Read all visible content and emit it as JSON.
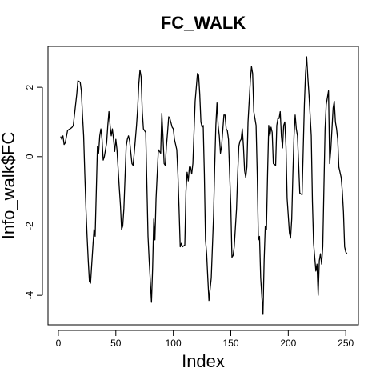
{
  "chart_data": {
    "type": "line",
    "title": "FC_WALK",
    "x_label": "Index",
    "y_label": "Info_walk$FC",
    "color": "#000000",
    "x": [
      2,
      3,
      4,
      5,
      6,
      8,
      9,
      10,
      11,
      12,
      13,
      14,
      15,
      16,
      17,
      19,
      20,
      21,
      22,
      23,
      24,
      25,
      26,
      27,
      28,
      30,
      31,
      32,
      33,
      34,
      35,
      36,
      37,
      38,
      39,
      40,
      42,
      43,
      44,
      45,
      46,
      47,
      48,
      49,
      50,
      51,
      53,
      54,
      55,
      56,
      57,
      58,
      59,
      60,
      61,
      62,
      64,
      65,
      66,
      67,
      68,
      69,
      70,
      71,
      72,
      73,
      74,
      76,
      77,
      78,
      79,
      80,
      81,
      82,
      83,
      84,
      85,
      87,
      88,
      89,
      90,
      91,
      92,
      93,
      94,
      95,
      96,
      97,
      99,
      100,
      101,
      102,
      103,
      104,
      105,
      106,
      107,
      108,
      110,
      111,
      112,
      113,
      114,
      115,
      116,
      117,
      118,
      119,
      121,
      122,
      123,
      124,
      125,
      126,
      127,
      128,
      129,
      130,
      131,
      133,
      134,
      135,
      136,
      137,
      138,
      139,
      140,
      141,
      142,
      144,
      145,
      146,
      147,
      148,
      149,
      150,
      151,
      152,
      153,
      155,
      156,
      157,
      158,
      159,
      160,
      161,
      162,
      163,
      164,
      165,
      167,
      168,
      169,
      170,
      171,
      172,
      173,
      174,
      175,
      176,
      178,
      179,
      180,
      181,
      182,
      183,
      184,
      185,
      186,
      187,
      189,
      190,
      191,
      192,
      193,
      194,
      195,
      196,
      197,
      198,
      199,
      201,
      202,
      203,
      204,
      205,
      206,
      207,
      208,
      209,
      210,
      212,
      213,
      214,
      215,
      216,
      217,
      218,
      219,
      220,
      221,
      222,
      224,
      225,
      226,
      227,
      228,
      229,
      230,
      231,
      232,
      233,
      235,
      236,
      237,
      238,
      239,
      240,
      241,
      242,
      243,
      244,
      246,
      247,
      248,
      249,
      250,
      251
    ],
    "values": [
      0.58,
      0.5,
      0.6,
      0.35,
      0.4,
      0.75,
      0.78,
      0.8,
      0.82,
      0.85,
      0.9,
      1.2,
      1.5,
      1.8,
      2.19,
      2.15,
      1.9,
      1.2,
      0.6,
      -0.5,
      -1.5,
      -2.3,
      -3.0,
      -3.6,
      -3.65,
      -2.6,
      -2.1,
      -2.3,
      -1.0,
      0.3,
      0.1,
      0.6,
      0.8,
      0.5,
      -0.1,
      0.0,
      0.4,
      0.9,
      1.3,
      0.9,
      0.6,
      0.8,
      0.5,
      0.15,
      0.5,
      0.2,
      -0.9,
      -1.4,
      -2.1,
      -2.0,
      -1.5,
      -0.6,
      0.3,
      0.5,
      0.6,
      0.45,
      -0.2,
      -0.25,
      0.1,
      0.5,
      0.9,
      1.4,
      2.1,
      2.5,
      2.3,
      1.3,
      0.8,
      0.7,
      -0.8,
      -2.3,
      -3.0,
      -3.6,
      -4.2,
      -3.2,
      -1.8,
      -2.4,
      -1.2,
      0.2,
      0.15,
      0.1,
      1.25,
      0.6,
      -0.2,
      -0.25,
      0.3,
      0.7,
      1.15,
      1.1,
      0.85,
      0.8,
      0.5,
      0.35,
      0.2,
      -0.5,
      -1.5,
      -2.6,
      -2.5,
      -2.6,
      -2.55,
      -1.0,
      -0.45,
      -0.7,
      -0.3,
      -0.3,
      -0.5,
      -0.2,
      0.7,
      1.6,
      2.4,
      2.35,
      1.8,
      1.0,
      0.85,
      0.9,
      -0.5,
      -2.4,
      -2.8,
      -3.5,
      -4.15,
      -3.5,
      -2.6,
      -1.7,
      -0.3,
      0.9,
      1.55,
      0.9,
      0.6,
      0.1,
      0.3,
      1.2,
      1.2,
      0.8,
      0.75,
      0.5,
      -0.5,
      -1.4,
      -2.9,
      -2.85,
      -2.6,
      -1.5,
      -0.5,
      0.3,
      0.45,
      0.5,
      0.8,
      0.3,
      -0.4,
      -0.6,
      -0.3,
      1.0,
      2.2,
      2.6,
      2.4,
      1.3,
      1.1,
      0.9,
      -0.5,
      -2.4,
      -2.3,
      -3.5,
      -4.55,
      -3.0,
      -2.0,
      -2.1,
      -0.5,
      0.9,
      0.6,
      0.85,
      0.7,
      -0.2,
      -0.25,
      0.9,
      1.1,
      1.1,
      1.3,
      0.6,
      0.25,
      0.9,
      1.0,
      0.3,
      -1.2,
      -2.2,
      -2.35,
      -1.8,
      -0.5,
      0.6,
      1.2,
      0.8,
      0.6,
      -0.2,
      -1.05,
      -1.1,
      0.2,
      1.5,
      2.4,
      2.88,
      2.3,
      1.8,
      1.2,
      0.6,
      -1.3,
      -2.5,
      -3.3,
      -3.1,
      -4.0,
      -3.0,
      -2.8,
      -3.1,
      -2.6,
      -0.9,
      0.8,
      1.5,
      1.9,
      -0.2,
      0.2,
      0.8,
      1.4,
      1.6,
      1.0,
      0.8,
      0.5,
      -0.3,
      -0.6,
      -1.0,
      -1.6,
      -2.6,
      -2.75,
      -2.8
    ],
    "xlim": [
      -9,
      261
    ],
    "ylim": [
      -4.85,
      3.18
    ],
    "xticks": [
      0,
      50,
      100,
      150,
      200,
      250
    ],
    "yticks": [
      -4,
      -2,
      0,
      2
    ]
  }
}
